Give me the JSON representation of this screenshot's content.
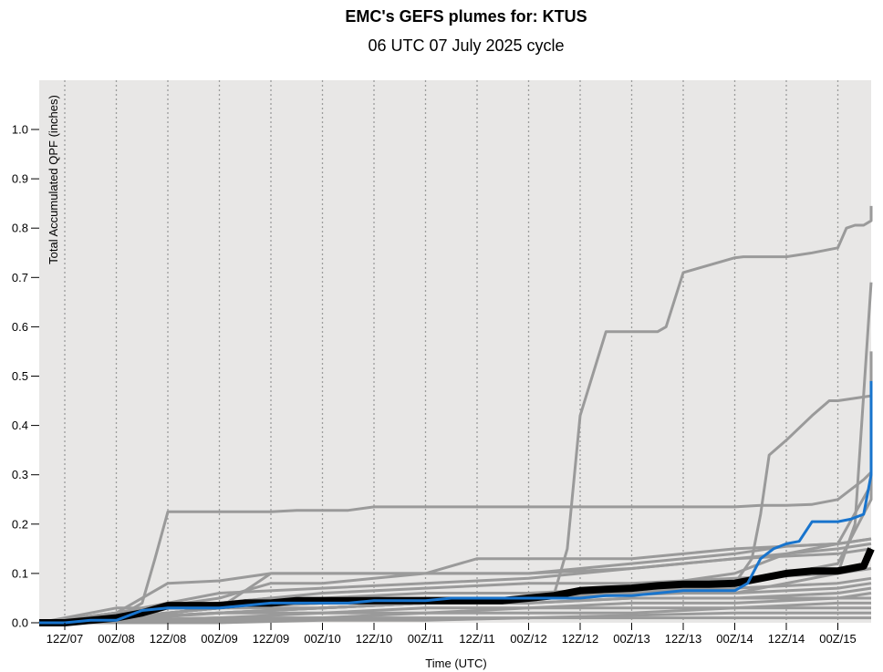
{
  "chart_data": {
    "type": "line",
    "title": "EMC's GEFS plumes for: KTUS",
    "subtitle": "06 UTC 07 July 2025 cycle",
    "xlabel": "Time (UTC)",
    "ylabel": "Total Accumulated QPF (inches)",
    "ylim": [
      0.0,
      1.1
    ],
    "yticks": [
      0.0,
      0.1,
      0.2,
      0.3,
      0.4,
      0.5,
      0.6,
      0.7,
      0.8,
      0.9,
      1.0
    ],
    "ytick_labels": [
      "0.0",
      "0.1",
      "0.2",
      "0.3",
      "0.4",
      "0.5",
      "0.6",
      "0.7",
      "0.8",
      "0.9",
      "1.0"
    ],
    "xlim": [
      6,
      204
    ],
    "xticks": [
      12,
      24,
      36,
      48,
      60,
      72,
      84,
      96,
      108,
      120,
      132,
      144,
      156,
      168,
      180,
      192
    ],
    "xtick_labels": [
      "12Z/07",
      "00Z/08",
      "12Z/08",
      "00Z/09",
      "12Z/09",
      "00Z/10",
      "12Z/10",
      "00Z/11",
      "12Z/11",
      "00Z/12",
      "12Z/12",
      "00Z/13",
      "12Z/13",
      "00Z/14",
      "12Z/14",
      "00Z/15"
    ],
    "grid": "vertical dotted",
    "colors": {
      "background": "#e8e7e6",
      "member": "#9a9a9a",
      "mean": "#000000",
      "control": "#1874cd"
    },
    "series": [
      {
        "role": "member",
        "x": [
          6,
          12,
          18,
          24,
          30,
          33,
          36,
          42,
          48,
          54,
          60,
          66,
          72,
          78,
          84,
          96,
          108,
          120,
          130,
          132,
          144,
          156,
          168,
          174,
          180,
          186,
          192,
          198,
          204
        ],
        "y": [
          0,
          0,
          0.005,
          0.01,
          0.04,
          0.13,
          0.225,
          0.225,
          0.225,
          0.225,
          0.225,
          0.228,
          0.228,
          0.228,
          0.235,
          0.235,
          0.235,
          0.235,
          0.235,
          0.235,
          0.235,
          0.235,
          0.235,
          0.238,
          0.238,
          0.24,
          0.25,
          0.29,
          0.305
        ]
      },
      {
        "role": "member",
        "x": [
          6,
          12,
          24,
          36,
          48,
          60,
          72,
          84,
          96,
          120,
          126,
          129,
          132,
          138,
          140,
          144,
          150,
          152,
          156,
          168,
          170,
          174,
          176,
          180,
          186,
          192,
          194,
          196,
          198,
          202,
          204
        ],
        "y": [
          0,
          0,
          0.01,
          0.03,
          0.03,
          0.04,
          0.04,
          0.04,
          0.04,
          0.04,
          0.06,
          0.15,
          0.42,
          0.59,
          0.59,
          0.59,
          0.59,
          0.6,
          0.71,
          0.74,
          0.742,
          0.742,
          0.742,
          0.742,
          0.75,
          0.76,
          0.8,
          0.806,
          0.806,
          0.815,
          0.845
        ]
      },
      {
        "role": "member",
        "x": [
          6,
          24,
          36,
          48,
          60,
          72,
          84,
          96,
          120,
          156,
          168,
          172,
          174,
          176,
          180,
          186,
          190,
          192,
          200,
          204
        ],
        "y": [
          0,
          0.01,
          0.03,
          0.04,
          0.05,
          0.05,
          0.05,
          0.05,
          0.05,
          0.06,
          0.08,
          0.13,
          0.22,
          0.34,
          0.37,
          0.42,
          0.45,
          0.45,
          0.46,
          0.55
        ]
      },
      {
        "role": "member",
        "x": [
          6,
          24,
          48,
          72,
          96,
          120,
          144,
          168,
          192,
          196,
          204
        ],
        "y": [
          0,
          0.01,
          0.03,
          0.03,
          0.04,
          0.05,
          0.06,
          0.06,
          0.1,
          0.2,
          0.69
        ]
      },
      {
        "role": "member",
        "x": [
          6,
          24,
          48,
          72,
          96,
          120,
          144,
          168,
          192,
          200,
          204
        ],
        "y": [
          0,
          0.01,
          0.02,
          0.03,
          0.04,
          0.05,
          0.06,
          0.08,
          0.12,
          0.25,
          0.4
        ]
      },
      {
        "role": "member",
        "x": [
          6,
          24,
          48,
          72,
          96,
          120,
          144,
          168,
          180,
          192,
          204
        ],
        "y": [
          0,
          0.01,
          0.03,
          0.04,
          0.05,
          0.05,
          0.07,
          0.1,
          0.14,
          0.16,
          0.28
        ]
      },
      {
        "role": "member",
        "x": [
          6,
          24,
          48,
          60,
          72,
          84,
          96,
          108,
          120,
          132,
          144,
          156,
          168,
          180,
          192,
          204
        ],
        "y": [
          0,
          0.03,
          0.03,
          0.1,
          0.1,
          0.1,
          0.1,
          0.1,
          0.1,
          0.11,
          0.12,
          0.13,
          0.14,
          0.155,
          0.16,
          0.17
        ]
      },
      {
        "role": "member",
        "x": [
          6,
          24,
          48,
          60,
          72,
          84,
          96,
          108,
          120,
          144,
          168,
          192,
          204
        ],
        "y": [
          0,
          0.02,
          0.05,
          0.08,
          0.08,
          0.09,
          0.1,
          0.13,
          0.13,
          0.13,
          0.15,
          0.16,
          0.17
        ]
      },
      {
        "role": "member",
        "x": [
          6,
          24,
          36,
          48,
          60,
          72,
          84,
          96,
          108,
          120,
          144,
          168,
          192,
          204
        ],
        "y": [
          0,
          0.02,
          0.08,
          0.085,
          0.1,
          0.1,
          0.1,
          0.1,
          0.1,
          0.1,
          0.11,
          0.13,
          0.15,
          0.16
        ]
      },
      {
        "role": "member",
        "x": [
          6,
          24,
          48,
          72,
          96,
          120,
          144,
          168,
          192,
          204
        ],
        "y": [
          0,
          0.02,
          0.06,
          0.07,
          0.08,
          0.09,
          0.11,
          0.13,
          0.14,
          0.15
        ]
      },
      {
        "role": "member",
        "x": [
          6,
          24,
          48,
          72,
          96,
          120,
          144,
          168,
          192,
          204
        ],
        "y": [
          0,
          0.02,
          0.04,
          0.06,
          0.07,
          0.08,
          0.08,
          0.09,
          0.1,
          0.11
        ]
      },
      {
        "role": "member",
        "x": [
          6,
          24,
          48,
          72,
          96,
          120,
          144,
          168,
          192,
          204
        ],
        "y": [
          0,
          0.01,
          0.03,
          0.05,
          0.06,
          0.06,
          0.07,
          0.07,
          0.08,
          0.09
        ]
      },
      {
        "role": "member",
        "x": [
          6,
          24,
          48,
          72,
          96,
          120,
          144,
          168,
          192,
          204
        ],
        "y": [
          0,
          0.01,
          0.03,
          0.04,
          0.05,
          0.05,
          0.06,
          0.06,
          0.07,
          0.08
        ]
      },
      {
        "role": "member",
        "x": [
          6,
          24,
          48,
          72,
          96,
          120,
          144,
          168,
          192,
          204
        ],
        "y": [
          0,
          0.01,
          0.02,
          0.03,
          0.04,
          0.04,
          0.05,
          0.05,
          0.06,
          0.07
        ]
      },
      {
        "role": "member",
        "x": [
          6,
          24,
          48,
          72,
          96,
          120,
          144,
          168,
          192,
          204
        ],
        "y": [
          0,
          0.01,
          0.02,
          0.02,
          0.03,
          0.03,
          0.04,
          0.04,
          0.05,
          0.05
        ]
      },
      {
        "role": "member",
        "x": [
          6,
          24,
          48,
          72,
          96,
          120,
          144,
          168,
          192,
          204
        ],
        "y": [
          0,
          0.005,
          0.01,
          0.02,
          0.02,
          0.03,
          0.03,
          0.03,
          0.04,
          0.04
        ]
      },
      {
        "role": "member",
        "x": [
          6,
          24,
          48,
          72,
          96,
          120,
          144,
          168,
          192,
          204
        ],
        "y": [
          0,
          0.005,
          0.01,
          0.01,
          0.02,
          0.02,
          0.02,
          0.03,
          0.03,
          0.03
        ]
      },
      {
        "role": "member",
        "x": [
          6,
          24,
          48,
          72,
          96,
          120,
          144,
          168,
          192,
          204
        ],
        "y": [
          0,
          0,
          0.005,
          0.01,
          0.01,
          0.01,
          0.015,
          0.02,
          0.02,
          0.02
        ]
      },
      {
        "role": "member",
        "x": [
          6,
          24,
          48,
          72,
          96,
          120,
          144,
          168,
          192,
          204
        ],
        "y": [
          0,
          0,
          0,
          0.005,
          0.005,
          0.01,
          0.01,
          0.01,
          0.01,
          0.01
        ]
      },
      {
        "role": "member",
        "x": [
          6,
          24,
          48,
          72,
          96,
          120,
          144,
          168,
          192,
          204
        ],
        "y": [
          0,
          0.005,
          0.02,
          0.03,
          0.04,
          0.04,
          0.05,
          0.05,
          0.05,
          0.06
        ]
      },
      {
        "role": "mean",
        "x": [
          6,
          12,
          18,
          24,
          30,
          36,
          42,
          48,
          54,
          60,
          66,
          72,
          78,
          84,
          90,
          96,
          102,
          108,
          114,
          120,
          126,
          132,
          138,
          144,
          150,
          156,
          162,
          168,
          174,
          180,
          186,
          192,
          198,
          204
        ],
        "y": [
          0,
          0,
          0.005,
          0.01,
          0.02,
          0.035,
          0.035,
          0.035,
          0.04,
          0.04,
          0.045,
          0.045,
          0.045,
          0.045,
          0.045,
          0.045,
          0.045,
          0.045,
          0.045,
          0.05,
          0.055,
          0.065,
          0.068,
          0.07,
          0.075,
          0.078,
          0.078,
          0.08,
          0.09,
          0.1,
          0.105,
          0.105,
          0.115,
          0.15
        ]
      },
      {
        "role": "control",
        "x": [
          6,
          12,
          18,
          24,
          30,
          36,
          42,
          48,
          54,
          60,
          66,
          72,
          78,
          84,
          90,
          96,
          102,
          108,
          114,
          120,
          126,
          132,
          138,
          144,
          150,
          156,
          162,
          168,
          171,
          174,
          177,
          180,
          183,
          186,
          189,
          192,
          195,
          198,
          201,
          204
        ],
        "y": [
          0,
          0,
          0.005,
          0.005,
          0.025,
          0.03,
          0.03,
          0.03,
          0.035,
          0.04,
          0.04,
          0.04,
          0.04,
          0.045,
          0.045,
          0.045,
          0.05,
          0.05,
          0.05,
          0.05,
          0.05,
          0.05,
          0.055,
          0.055,
          0.06,
          0.065,
          0.065,
          0.065,
          0.08,
          0.13,
          0.15,
          0.16,
          0.165,
          0.205,
          0.205,
          0.205,
          0.21,
          0.22,
          0.3,
          0.49
        ]
      }
    ]
  }
}
